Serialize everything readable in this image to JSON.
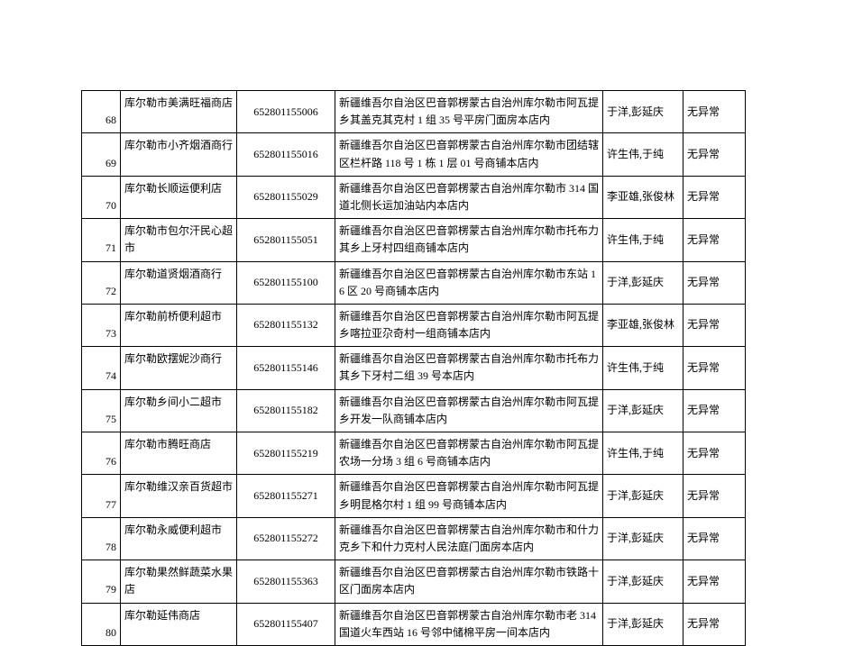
{
  "table": {
    "border_color": "#000000",
    "fontsize": 12,
    "rows": [
      {
        "no": "68",
        "name": "库尔勒市美满旺福商店",
        "code": "652801155006",
        "addr": "新疆维吾尔自治区巴音郭楞蒙古自治州库尔勒市阿瓦提乡其盖克其克村 1 组 35 号平房门面房本店内",
        "insp": "于洋,彭延庆",
        "status": "无异常"
      },
      {
        "no": "69",
        "name": "库尔勒市小齐烟酒商行",
        "code": "652801155016",
        "addr": "新疆维吾尔自治区巴音郭楞蒙古自治州库尔勒市团结辖区栏杆路 118 号 1 栋 1 层 01 号商铺本店内",
        "insp": "许生伟,于纯",
        "status": "无异常"
      },
      {
        "no": "70",
        "name": "库尔勒长顺运便利店",
        "code": "652801155029",
        "addr": "新疆维吾尔自治区巴音郭楞蒙古自治州库尔勒市 314 国道北侧长运加油站内本店内",
        "insp": "李亚雄,张俊林",
        "status": "无异常"
      },
      {
        "no": "71",
        "name": "库尔勒市包尔汗民心超市",
        "code": "652801155051",
        "addr": "新疆维吾尔自治区巴音郭楞蒙古自治州库尔勒市托布力其乡上牙村四组商铺本店内",
        "insp": "许生伟,于纯",
        "status": "无异常"
      },
      {
        "no": "72",
        "name": "库尔勒道贤烟酒商行",
        "code": "652801155100",
        "addr": "新疆维吾尔自治区巴音郭楞蒙古自治州库尔勒市东站 16 区 20 号商铺本店内",
        "insp": "于洋,彭延庆",
        "status": "无异常"
      },
      {
        "no": "73",
        "name": "库尔勒前桥便利超市",
        "code": "652801155132",
        "addr": "新疆维吾尔自治区巴音郭楞蒙古自治州库尔勒市阿瓦提乡喀拉亚尕奇村一组商铺本店内",
        "insp": "李亚雄,张俊林",
        "status": "无异常"
      },
      {
        "no": "74",
        "name": "库尔勒欧摆妮沙商行",
        "code": "652801155146",
        "addr": "新疆维吾尔自治区巴音郭楞蒙古自治州库尔勒市托布力其乡下牙村二组 39 号本店内",
        "insp": "许生伟,于纯",
        "status": "无异常"
      },
      {
        "no": "75",
        "name": "库尔勒乡间小二超市",
        "code": "652801155182",
        "addr": "新疆维吾尔自治区巴音郭楞蒙古自治州库尔勒市阿瓦提乡开发一队商铺本店内",
        "insp": "于洋,彭延庆",
        "status": "无异常"
      },
      {
        "no": "76",
        "name": "库尔勒市腾旺商店",
        "code": "652801155219",
        "addr": "新疆维吾尔自治区巴音郭楞蒙古自治州库尔勒市阿瓦提农场一分场 3 组 6 号商铺本店内",
        "insp": "许生伟,于纯",
        "status": "无异常"
      },
      {
        "no": "77",
        "name": "库尔勒维汉亲百货超市",
        "code": "652801155271",
        "addr": "新疆维吾尔自治区巴音郭楞蒙古自治州库尔勒市阿瓦提乡明昆格尔村 1 组 99 号商铺本店内",
        "insp": "于洋,彭延庆",
        "status": "无异常"
      },
      {
        "no": "78",
        "name": "库尔勒永威便利超市",
        "code": "652801155272",
        "addr": "新疆维吾尔自治区巴音郭楞蒙古自治州库尔勒市和什力克乡下和什力克村人民法庭门面房本店内",
        "insp": "于洋,彭延庆",
        "status": "无异常"
      },
      {
        "no": "79",
        "name": "库尔勒果然鲜蔬菜水果店",
        "code": "652801155363",
        "addr": "新疆维吾尔自治区巴音郭楞蒙古自治州库尔勒市铁路十区门面房本店内",
        "insp": "于洋,彭延庆",
        "status": "无异常"
      },
      {
        "no": "80",
        "name": "库尔勒延伟商店",
        "code": "652801155407",
        "addr": "新疆维吾尔自治区巴音郭楞蒙古自治州库尔勒市老 314 国道火车西站 16 号邻中储棉平房一间本店内",
        "insp": "于洋,彭延庆",
        "status": "无异常"
      }
    ]
  }
}
